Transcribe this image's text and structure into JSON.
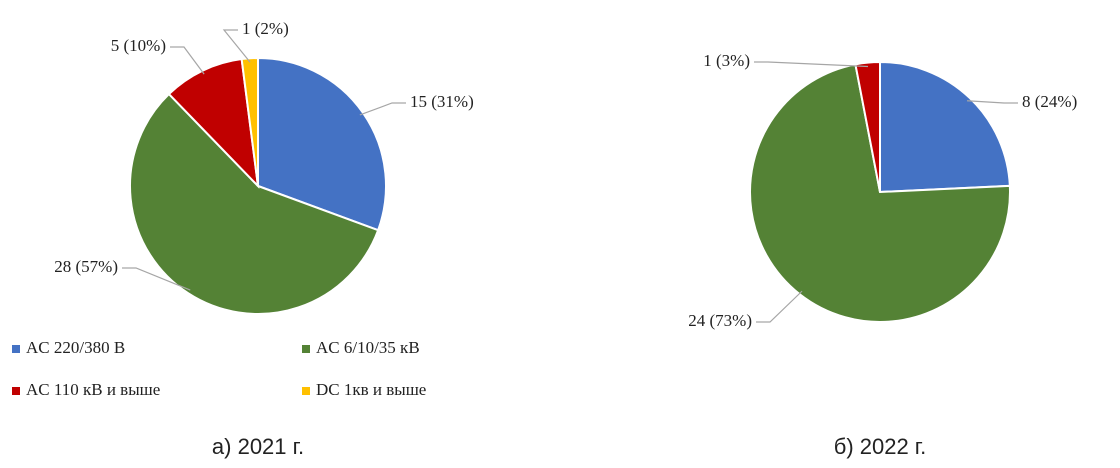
{
  "chart_data": [
    {
      "type": "pie",
      "title": "а) 2021 г.",
      "categories": [
        "AC 220/380 В",
        "AC 6/10/35 кВ",
        "AC 110 кВ и выше",
        "DC 1кв и выше"
      ],
      "values": [
        15,
        28,
        5,
        1
      ],
      "value_labels": [
        "15 (31%)",
        "28 (57%)",
        "5 (10%)",
        "1 (2%)"
      ],
      "colors": [
        "#4472c4",
        "#548235",
        "#c00000",
        "#ffc000"
      ],
      "legend": "bottom"
    },
    {
      "type": "pie",
      "title": "б) 2022 г.",
      "values": [
        8,
        24,
        1
      ],
      "value_labels": [
        "8 (24%)",
        "24 (73%)",
        "1 (3%)"
      ],
      "colors": [
        "#4472c4",
        "#548235",
        "#c00000"
      ]
    }
  ]
}
